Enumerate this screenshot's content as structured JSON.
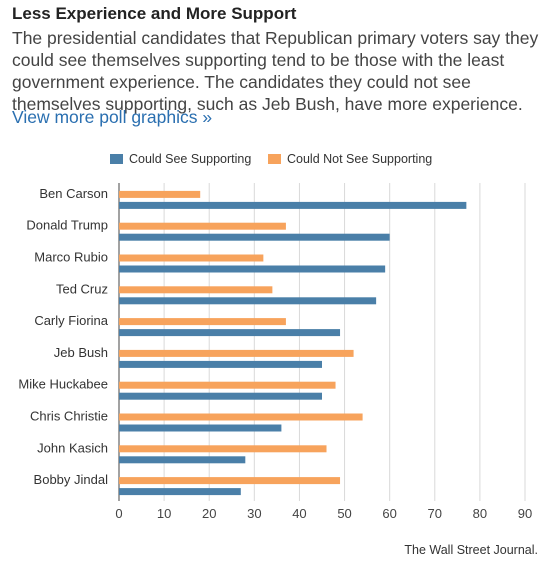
{
  "header": {
    "title": "Less Experience and More Support",
    "subtitle": "The presidential candidates that Republican primary voters say they could see themselves supporting tend to be those with the least government experience. The candidates they could not see themselves supporting, such as Jeb Bush, have more experience.",
    "link_text": "View more poll graphics »"
  },
  "legend": {
    "items": [
      {
        "label": "Could See Supporting",
        "color": "#4a7fa8"
      },
      {
        "label": "Could Not See Supporting",
        "color": "#f7a35c"
      }
    ],
    "placement": "top"
  },
  "source": "The Wall Street Journal.",
  "chart_data": {
    "type": "bar",
    "orientation": "horizontal",
    "categories": [
      "Ben Carson",
      "Donald Trump",
      "Marco Rubio",
      "Ted Cruz",
      "Carly Fiorina",
      "Jeb Bush",
      "Mike Huckabee",
      "Chris Christie",
      "John Kasich",
      "Bobby Jindal"
    ],
    "series": [
      {
        "name": "Could Not See Supporting",
        "color": "#f7a35c",
        "values": [
          18,
          37,
          32,
          34,
          37,
          52,
          48,
          54,
          46,
          49
        ]
      },
      {
        "name": "Could See Supporting",
        "color": "#4a7fa8",
        "values": [
          77,
          60,
          59,
          57,
          49,
          45,
          45,
          36,
          28,
          27
        ]
      }
    ],
    "xlim": [
      0,
      90
    ],
    "xticks": [
      0,
      10,
      20,
      30,
      40,
      50,
      60,
      70,
      80,
      90
    ],
    "grid": "vertical"
  }
}
